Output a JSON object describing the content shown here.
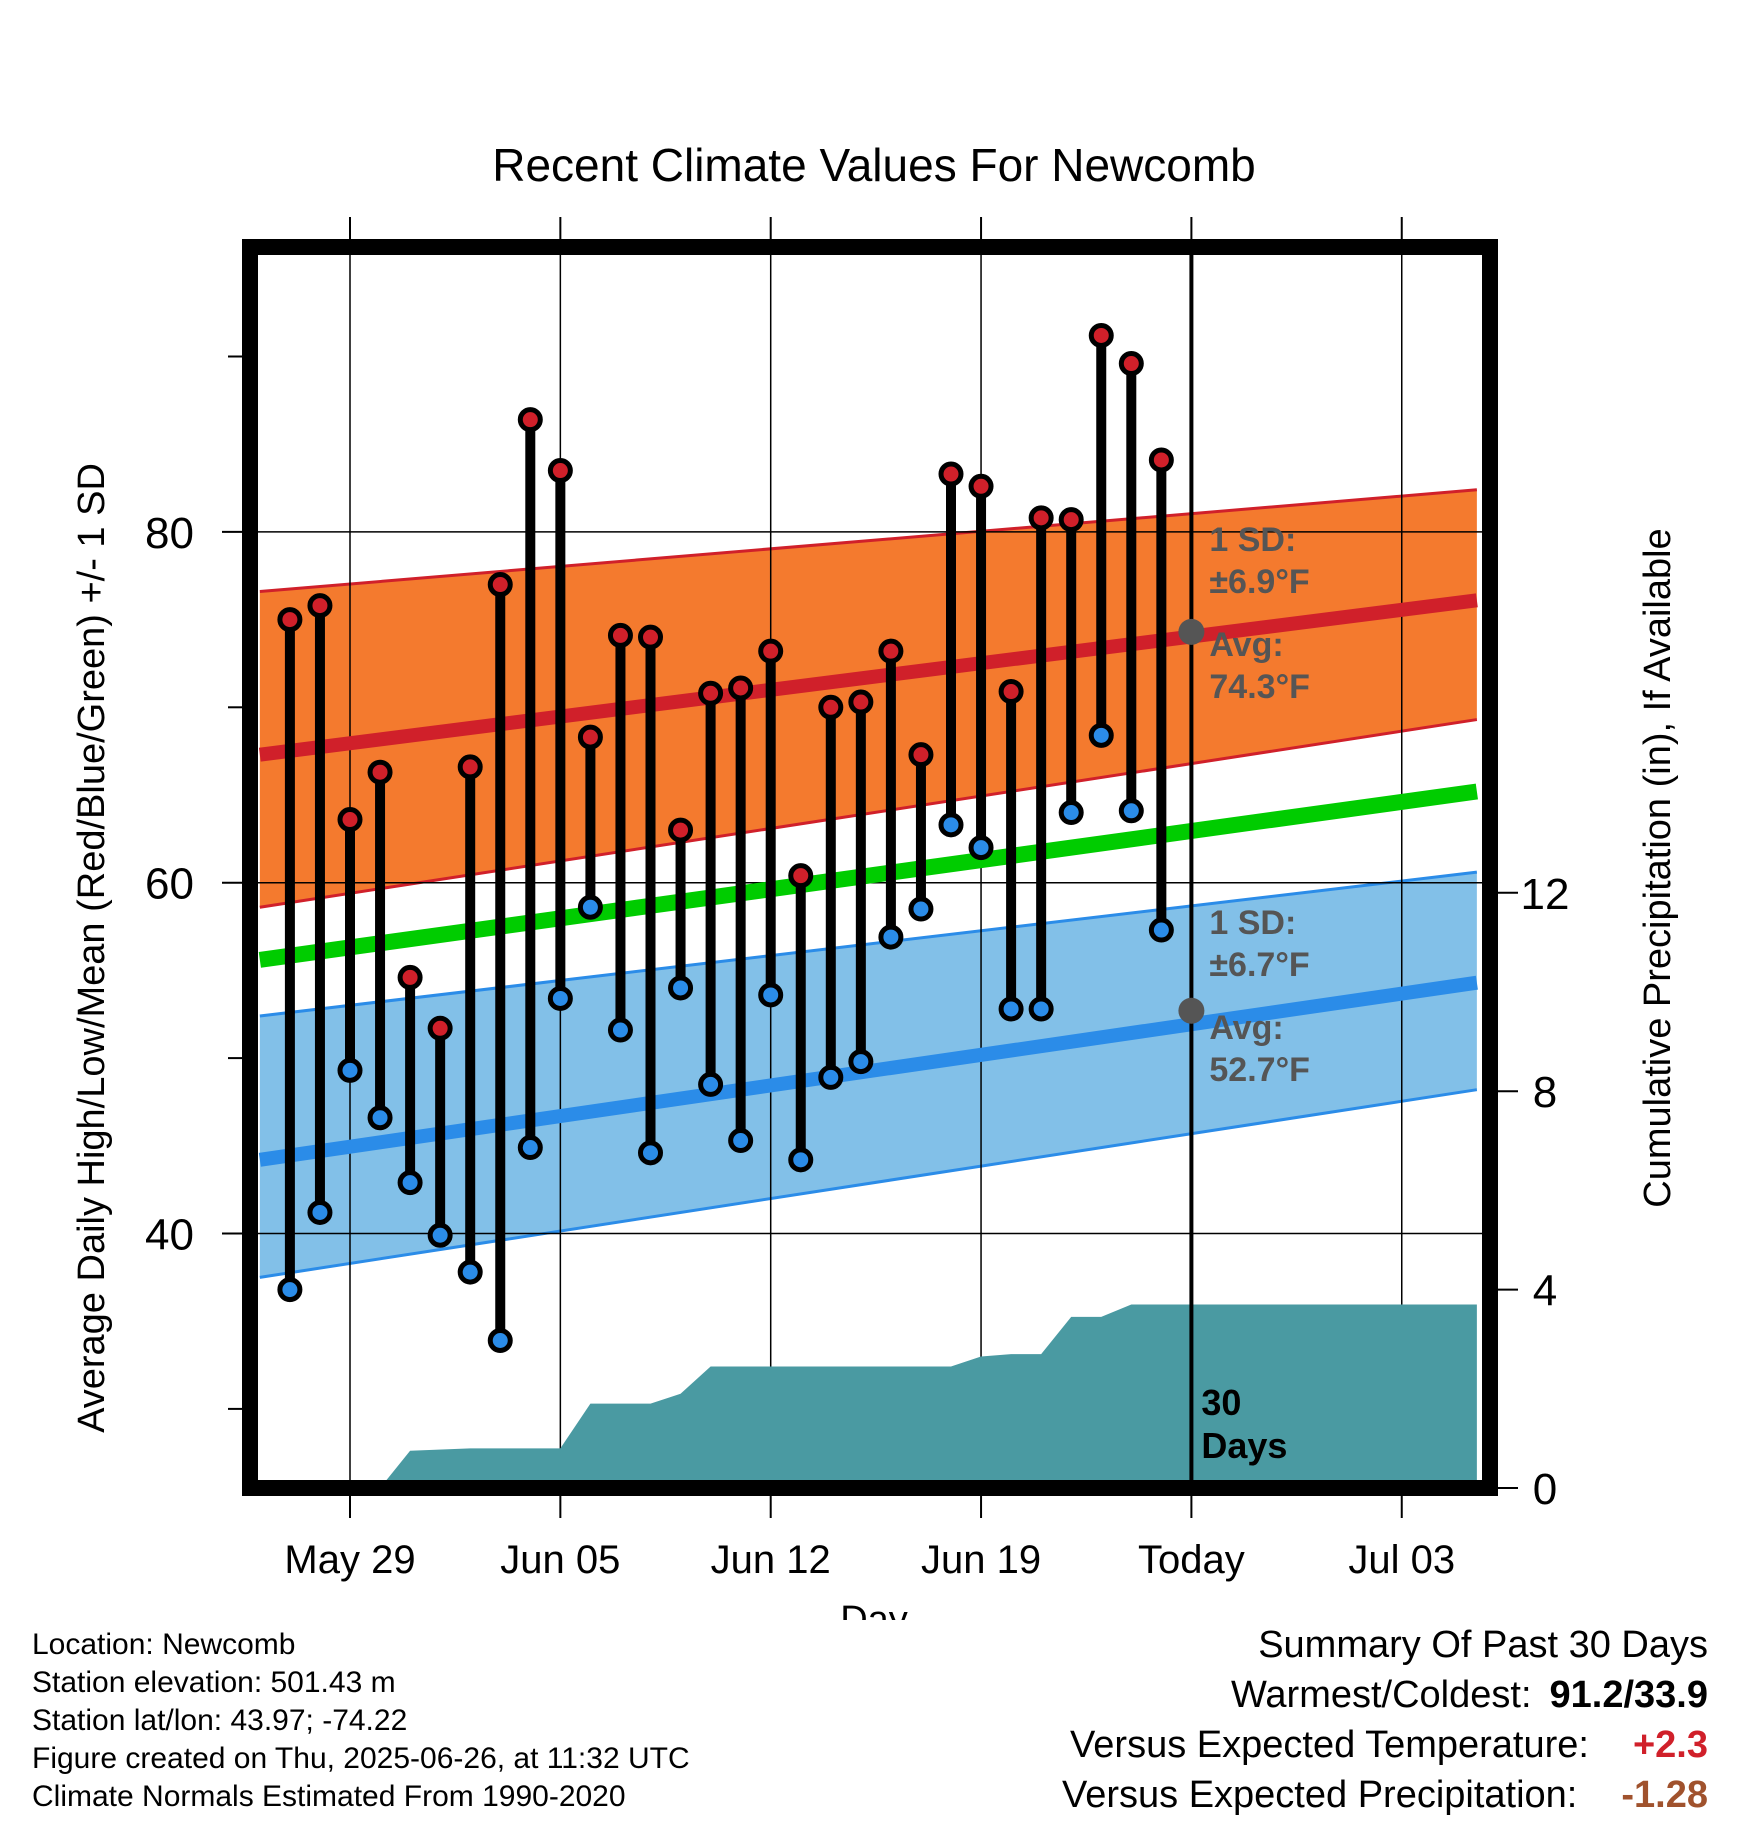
{
  "chart_data": {
    "type": "line",
    "title": "Recent Climate Values For Newcomb",
    "xlabel": "Day",
    "ylabel": "Average Daily High/Low/Mean (Red/Blue/Green) +/- 1 SD",
    "y2label": "Cumulative Precipitation (in), If Available",
    "x_ticks": [
      {
        "day": 3,
        "label": "May 29"
      },
      {
        "day": 10,
        "label": "Jun 05"
      },
      {
        "day": 17,
        "label": "Jun 12"
      },
      {
        "day": 24,
        "label": "Jun 19"
      },
      {
        "day": 31,
        "label": "Today"
      },
      {
        "day": 38,
        "label": "Jul 03"
      }
    ],
    "xlim": [
      0,
      40.5
    ],
    "ylim": [
      27,
      97
    ],
    "y_ticks": [
      40,
      60,
      80
    ],
    "y_minor_ticks": [
      30,
      50,
      70,
      90
    ],
    "y2lim": [
      0,
      25
    ],
    "y2_ticks": [
      0,
      4,
      8,
      12
    ],
    "grid": true,
    "today_day": 31,
    "today_label": "30 Days",
    "normals": {
      "high_mean": [
        67.3,
        76.1
      ],
      "high_sd_upper": [
        76.6,
        82.4
      ],
      "high_sd_lower": [
        58.6,
        69.3
      ],
      "mean": [
        55.6,
        65.2
      ],
      "low_mean": [
        44.2,
        54.3
      ],
      "low_sd_upper": [
        52.4,
        60.6
      ],
      "low_sd_lower": [
        37.5,
        48.2
      ]
    },
    "annotations": {
      "high_sd": "±6.9°F",
      "high_avg": "74.3°F",
      "low_sd": "±6.7°F",
      "low_avg": "52.7°F",
      "sd_label": "1 SD:",
      "avg_label": "Avg:"
    },
    "today_avg_high": 74.3,
    "today_avg_low": 52.7,
    "series": [
      {
        "name": "High",
        "color": "#d0202a",
        "values": [
          75.0,
          75.8,
          63.6,
          66.3,
          54.6,
          51.7,
          66.6,
          77.0,
          86.4,
          83.5,
          68.3,
          74.1,
          74.0,
          63.0,
          70.8,
          71.1,
          73.2,
          60.4,
          70.0,
          70.3,
          73.2,
          67.3,
          83.3,
          82.6,
          70.9,
          80.8,
          80.7,
          91.2,
          89.6,
          84.1
        ]
      },
      {
        "name": "Low",
        "color": "#2b8ce8",
        "values": [
          36.8,
          41.2,
          49.3,
          46.6,
          42.9,
          39.9,
          37.8,
          33.9,
          44.9,
          53.4,
          58.6,
          51.6,
          44.6,
          54.0,
          48.5,
          45.3,
          53.6,
          44.2,
          48.9,
          49.8,
          56.9,
          58.5,
          63.3,
          62.0,
          52.8,
          52.8,
          64.0,
          68.4,
          64.1,
          57.3
        ]
      },
      {
        "name": "Cumulative Precipitation",
        "color": "#4a9aa2",
        "days": [
          0,
          4,
          5,
          7,
          10,
          11,
          13,
          14,
          15,
          23,
          24,
          25,
          26,
          27,
          28,
          29,
          40.5
        ],
        "values": [
          0,
          0,
          0.75,
          0.8,
          0.8,
          1.7,
          1.7,
          1.9,
          2.45,
          2.45,
          2.65,
          2.7,
          2.7,
          3.45,
          3.45,
          3.7,
          3.7
        ]
      }
    ]
  },
  "info": {
    "location": "Location: Newcomb",
    "elevation": "Station elevation: 501.43 m",
    "latlon": "Station lat/lon: 43.97; -74.22",
    "created": "Figure created on Thu, 2025-06-26, at 11:32 UTC",
    "normals": "Climate Normals Estimated From 1990-2020"
  },
  "summary": {
    "title": "Summary Of Past 30 Days",
    "warmest_label": "Warmest/Coldest:",
    "warmest_value": "91.2/33.9",
    "temp_label": "Versus Expected Temperature:",
    "temp_value": "+2.3",
    "temp_color": "#d0202a",
    "precip_label": "Versus Expected Precipitation:",
    "precip_value": "-1.28",
    "precip_color": "#a0522d"
  }
}
